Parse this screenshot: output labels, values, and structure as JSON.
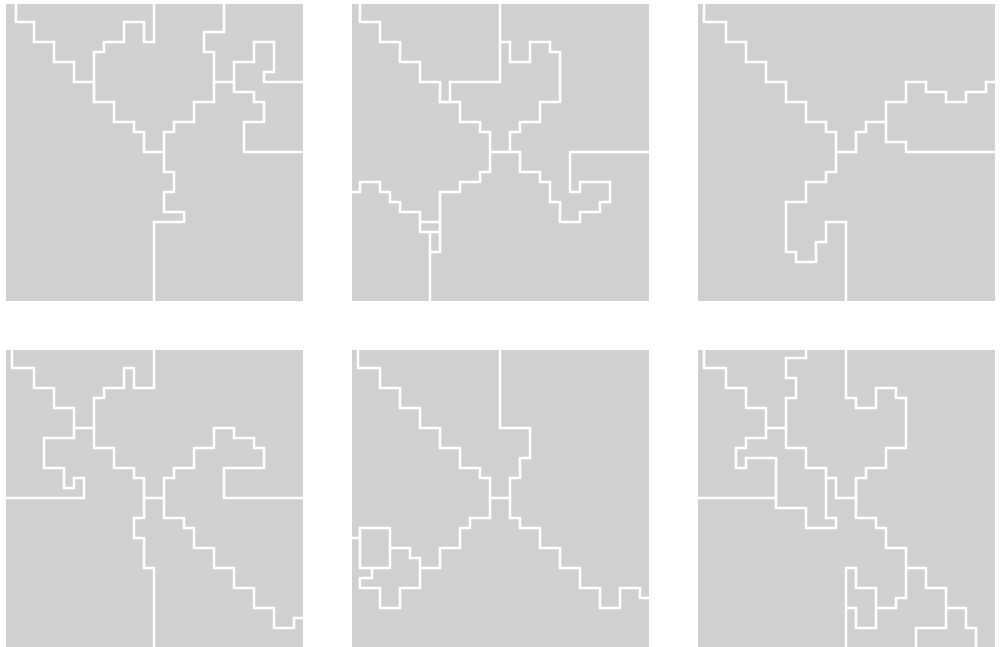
{
  "colors": {
    "background": "#ffffff",
    "panel": "#d0d0d0",
    "boundary": "#ffffff"
  },
  "panels": [
    {
      "id": "p1"
    },
    {
      "id": "p2"
    },
    {
      "id": "p3"
    },
    {
      "id": "p4"
    },
    {
      "id": "p5"
    },
    {
      "id": "p6"
    }
  ]
}
